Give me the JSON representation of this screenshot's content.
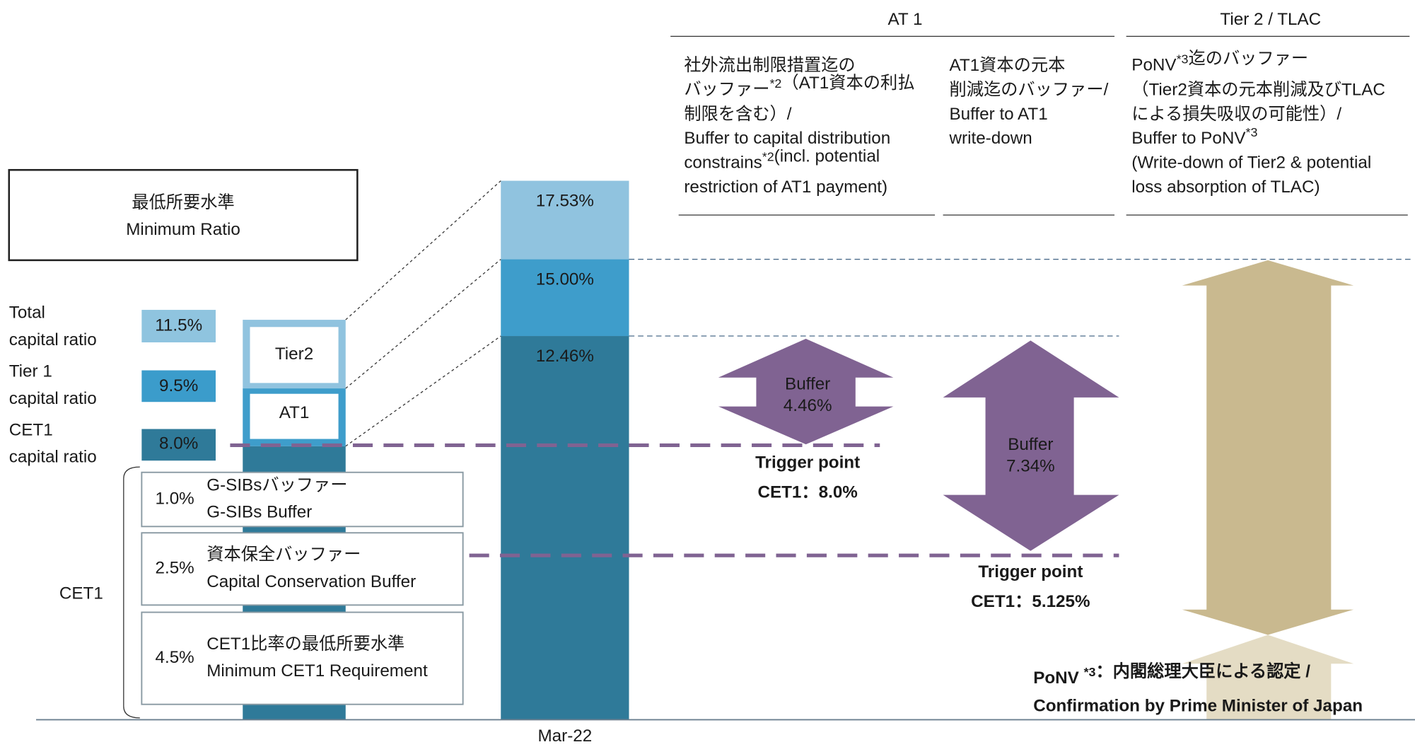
{
  "headers": {
    "at1": "AT 1",
    "tier2": "Tier 2 / TLAC"
  },
  "columns": [
    {
      "lines": [
        "社外流出制限措置迄の",
        [
          "バッファー",
          {
            "sup": "*2"
          },
          "（AT1資本の利払"
        ],
        "制限を含む）/",
        "Buffer to capital distribution",
        [
          "constrains",
          {
            "sup": "*2"
          },
          "(incl. potential"
        ],
        "restriction of AT1 payment)"
      ]
    },
    {
      "lines": [
        "AT1資本の元本",
        "削減迄のバッファー/",
        "Buffer to AT1",
        "write-down"
      ]
    },
    {
      "lines": [
        [
          "PoNV",
          {
            "sup": "*3"
          },
          "迄のバッファー"
        ],
        "（Tier2資本の元本削減及びTLAC",
        "による損失吸収の可能性）/",
        [
          "Buffer to PoNV",
          {
            "sup": "*3"
          }
        ],
        "(Write-down of Tier2 & potential",
        "loss absorption of TLAC)"
      ]
    }
  ],
  "minimum_ratio": [
    "最低所要水準",
    "Minimum Ratio"
  ],
  "ratio_labels": [
    {
      "label": [
        "Total",
        "capital ratio"
      ],
      "value": "11.5%"
    },
    {
      "label": [
        "Tier 1",
        "capital ratio"
      ],
      "value": "9.5%"
    },
    {
      "label": [
        "CET1",
        "capital ratio"
      ],
      "value": "8.0%"
    }
  ],
  "tower": [
    "Tier2",
    "AT1"
  ],
  "cet1_label": "CET1",
  "components": [
    {
      "value": "1.0%",
      "lines": [
        "G-SIBsバッファー",
        "G-SIBs Buffer"
      ]
    },
    {
      "value": "2.5%",
      "lines": [
        "資本保全バッファー",
        "Capital Conservation Buffer"
      ]
    },
    {
      "value": "4.5%",
      "lines": [
        "CET1比率の最低所要水準",
        "Minimum CET1 Requirement"
      ]
    }
  ],
  "bar": {
    "category": "Mar-22",
    "levels": [
      "17.53%",
      "15.00%",
      "12.46%"
    ]
  },
  "buffers": [
    {
      "lines": [
        "Buffer",
        "4.46%"
      ],
      "trigger": [
        "Trigger point",
        "CET1：8.0%"
      ]
    },
    {
      "lines": [
        "Buffer",
        "7.34%"
      ],
      "trigger": [
        "Trigger point",
        "CET1：5.125%"
      ]
    }
  ],
  "footnote": [
    [
      "PoNV ",
      {
        "sup": "*3"
      },
      "：内閣総理大臣による認定 /"
    ],
    [
      "Confirmation by Prime Minister of Japan"
    ]
  ]
}
